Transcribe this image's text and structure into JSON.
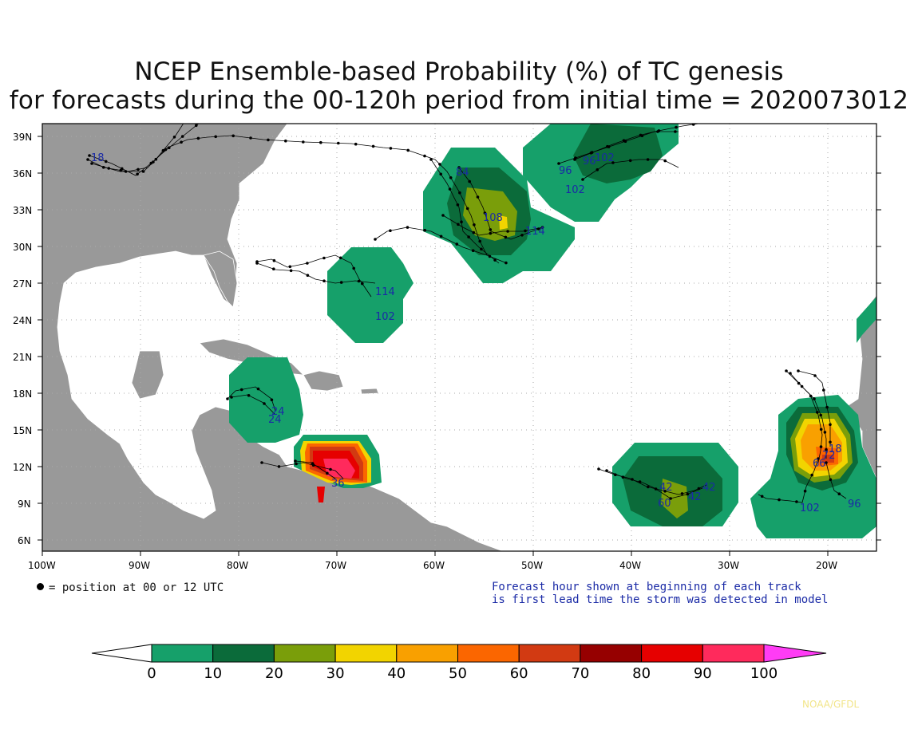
{
  "title_line1": "NCEP Ensemble-based Probability (%) of TC genesis",
  "title_line2": "for forecasts during the 00-120h period from initial time = 2020073012",
  "lat_labels": [
    "39N",
    "36N",
    "33N",
    "30N",
    "27N",
    "24N",
    "21N",
    "18N",
    "15N",
    "12N",
    "9N",
    "6N"
  ],
  "lon_labels": [
    "100W",
    "90W",
    "80W",
    "70W",
    "60W",
    "50W",
    "40W",
    "30W",
    "20W"
  ],
  "legend_dot_text": "= position at 00 or 12 UTC",
  "note_line1": "Forecast hour shown at beginning of each track",
  "note_line2": "is first lead time the storm was detected in model",
  "colorbar": {
    "labels": [
      "0",
      "10",
      "20",
      "30",
      "40",
      "50",
      "60",
      "70",
      "80",
      "90",
      "100"
    ],
    "colors": [
      "#ffffff",
      "#16a06a",
      "#0b6b3a",
      "#7a9e0a",
      "#f2d400",
      "#f9a000",
      "#fb6600",
      "#d23a12",
      "#960000",
      "#e60000",
      "#ff2a5c",
      "#ff3cf5"
    ]
  },
  "track_labels": [
    {
      "text": "84"
    },
    {
      "text": "108"
    },
    {
      "text": "114"
    },
    {
      "text": "96"
    },
    {
      "text": "96"
    },
    {
      "text": "102"
    },
    {
      "text": "102"
    },
    {
      "text": "114"
    },
    {
      "text": "102"
    },
    {
      "text": "24"
    },
    {
      "text": "24"
    },
    {
      "text": "42"
    },
    {
      "text": "42"
    },
    {
      "text": "42"
    },
    {
      "text": "60"
    },
    {
      "text": "102"
    },
    {
      "text": "96"
    },
    {
      "text": "18"
    },
    {
      "text": "72"
    },
    {
      "text": "66"
    },
    {
      "text": "18"
    },
    {
      "text": "36"
    }
  ],
  "credit": "NOAA/GFDL"
}
